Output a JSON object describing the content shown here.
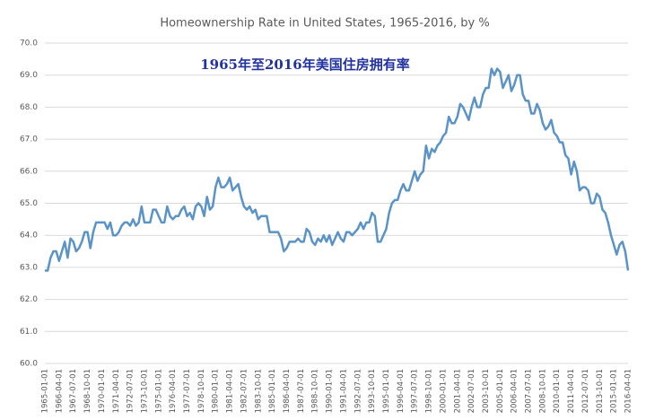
{
  "chart_data": {
    "type": "line",
    "title": "Homeownership Rate in United States, 1965-2016, by %",
    "subtitle": "1965年至2016年美国住房拥有率",
    "categories": [
      "1965-01-01",
      null,
      null,
      null,
      null,
      "1966-04-01",
      null,
      null,
      null,
      null,
      "1967-07-01",
      null,
      null,
      null,
      null,
      "1968-10-01",
      null,
      null,
      null,
      null,
      "1970-01-01",
      null,
      null,
      null,
      null,
      "1971-04-01",
      null,
      null,
      null,
      null,
      "1972-07-01",
      null,
      null,
      null,
      null,
      "1973-10-01",
      null,
      null,
      null,
      null,
      "1975-01-01",
      null,
      null,
      null,
      null,
      "1976-04-01",
      null,
      null,
      null,
      null,
      "1977-07-01",
      null,
      null,
      null,
      null,
      "1978-10-01",
      null,
      null,
      null,
      null,
      "1980-01-01",
      null,
      null,
      null,
      null,
      "1981-04-01",
      null,
      null,
      null,
      null,
      "1982-07-01",
      null,
      null,
      null,
      null,
      "1983-10-01",
      null,
      null,
      null,
      null,
      "1985-01-01",
      null,
      null,
      null,
      null,
      "1986-04-01",
      null,
      null,
      null,
      null,
      "1987-07-01",
      null,
      null,
      null,
      null,
      "1988-10-01",
      null,
      null,
      null,
      null,
      "1990-01-01",
      null,
      null,
      null,
      null,
      "1991-04-01",
      null,
      null,
      null,
      null,
      "1992-07-01",
      null,
      null,
      null,
      null,
      "1993-10-01",
      null,
      null,
      null,
      null,
      "1995-01-01",
      null,
      null,
      null,
      null,
      "1996-04-01",
      null,
      null,
      null,
      null,
      "1997-07-01",
      null,
      null,
      null,
      null,
      "1998-10-01",
      null,
      null,
      null,
      null,
      "2000-01-01",
      null,
      null,
      null,
      null,
      "2001-04-01",
      null,
      null,
      null,
      null,
      "2002-07-01",
      null,
      null,
      null,
      null,
      "2003-10-01",
      null,
      null,
      null,
      null,
      "2005-01-01",
      null,
      null,
      null,
      null,
      "2006-04-01",
      null,
      null,
      null,
      null,
      "2007-07-01",
      null,
      null,
      null,
      null,
      "2008-10-01",
      null,
      null,
      null,
      null,
      "2010-01-01",
      null,
      null,
      null,
      null,
      "2011-04-01",
      null,
      null,
      null,
      null,
      "2012-07-01",
      null,
      null,
      null,
      null,
      "2013-10-01",
      null,
      null,
      null,
      null,
      "2015-01-01",
      null,
      null,
      null,
      null,
      "2016-04-01"
    ],
    "series": [
      {
        "name": "Homeownership Rate",
        "color": "#5a93c8",
        "values": [
          62.9,
          62.9,
          63.3,
          63.5,
          63.5,
          63.2,
          63.5,
          63.8,
          63.3,
          63.9,
          63.8,
          63.5,
          63.6,
          63.8,
          64.1,
          64.1,
          63.6,
          64.1,
          64.4,
          64.4,
          64.4,
          64.4,
          64.2,
          64.4,
          64.0,
          64.0,
          64.1,
          64.3,
          64.4,
          64.4,
          64.3,
          64.5,
          64.3,
          64.4,
          64.9,
          64.4,
          64.4,
          64.4,
          64.8,
          64.8,
          64.6,
          64.4,
          64.4,
          64.9,
          64.6,
          64.5,
          64.6,
          64.6,
          64.8,
          64.9,
          64.6,
          64.7,
          64.5,
          64.9,
          65.0,
          64.9,
          64.6,
          65.2,
          64.8,
          64.9,
          65.5,
          65.8,
          65.5,
          65.5,
          65.6,
          65.8,
          65.4,
          65.5,
          65.6,
          65.2,
          64.9,
          64.8,
          64.9,
          64.7,
          64.8,
          64.5,
          64.6,
          64.6,
          64.6,
          64.1,
          64.1,
          64.1,
          64.1,
          63.9,
          63.5,
          63.6,
          63.8,
          63.8,
          63.8,
          63.9,
          63.8,
          63.8,
          64.2,
          64.1,
          63.8,
          63.7,
          63.9,
          63.8,
          64.0,
          63.8,
          64.0,
          63.7,
          63.9,
          64.1,
          63.9,
          63.8,
          64.1,
          64.1,
          64.0,
          64.1,
          64.2,
          64.4,
          64.2,
          64.4,
          64.4,
          64.7,
          64.6,
          63.8,
          63.8,
          64.0,
          64.2,
          64.7,
          65.0,
          65.1,
          65.1,
          65.4,
          65.6,
          65.4,
          65.4,
          65.7,
          66.0,
          65.7,
          65.9,
          66.0,
          66.8,
          66.4,
          66.7,
          66.6,
          66.8,
          66.9,
          67.1,
          67.2,
          67.7,
          67.5,
          67.5,
          67.7,
          68.1,
          68.0,
          67.8,
          67.6,
          68.0,
          68.3,
          68.0,
          68.0,
          68.4,
          68.6,
          68.6,
          69.2,
          69.0,
          69.2,
          69.1,
          68.6,
          68.8,
          69.0,
          68.5,
          68.7,
          69.0,
          69.0,
          68.4,
          68.2,
          68.2,
          67.8,
          67.8,
          68.1,
          67.9,
          67.5,
          67.3,
          67.4,
          67.6,
          67.2,
          67.1,
          66.9,
          66.9,
          66.5,
          66.4,
          65.9,
          66.3,
          66.0,
          65.4,
          65.5,
          65.5,
          65.4,
          65.0,
          65.0,
          65.3,
          65.2,
          64.8,
          64.7,
          64.4,
          64.0,
          63.7,
          63.4,
          63.7,
          63.8,
          63.5,
          62.9
        ]
      }
    ],
    "ylim": [
      60,
      70
    ],
    "yticks": [
      {
        "value": 60,
        "label": "60.0"
      },
      {
        "value": 61,
        "label": "61.0"
      },
      {
        "value": 62,
        "label": "62.0"
      },
      {
        "value": 63,
        "label": "63.0"
      },
      {
        "value": 64,
        "label": "64.0"
      },
      {
        "value": 65,
        "label": "65.0"
      },
      {
        "value": 66,
        "label": "66.0"
      },
      {
        "value": 67,
        "label": "67.0"
      },
      {
        "value": 68,
        "label": "68.0"
      },
      {
        "value": 69,
        "label": "69.0"
      },
      {
        "value": 70,
        "label": "70.0"
      }
    ],
    "grid": true
  }
}
